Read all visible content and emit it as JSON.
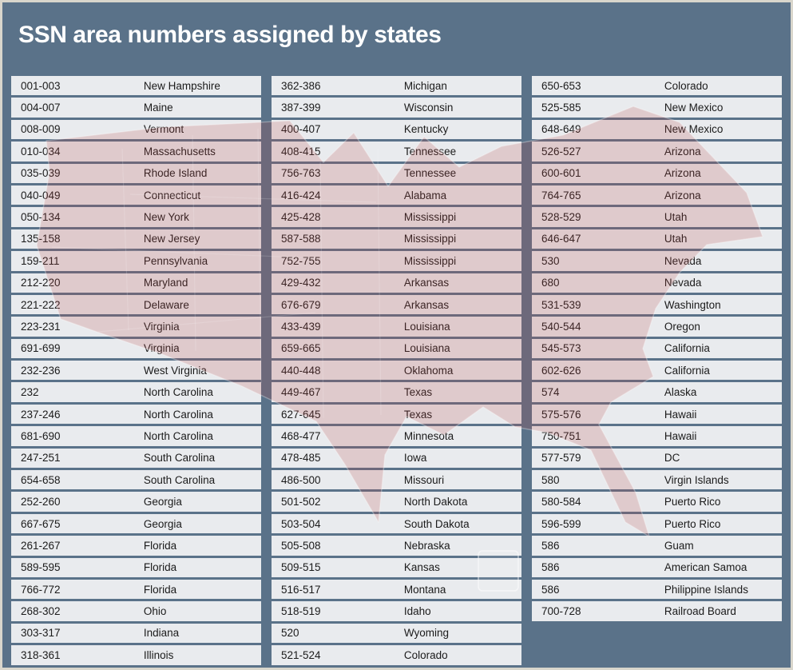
{
  "title": "SSN area numbers assigned by states",
  "colors": {
    "background": "#5a7289",
    "frame": "#d9d6cc",
    "row": "#e9ebee",
    "text": "#1b1b1b",
    "title": "#ffffff",
    "map": "#b84444"
  },
  "icons": {
    "us_map": "us-map-silhouette-background"
  },
  "columns": [
    {
      "rows": [
        {
          "range": "001-003",
          "state": "New Hampshire"
        },
        {
          "range": "004-007",
          "state": "Maine"
        },
        {
          "range": "008-009",
          "state": "Vermont"
        },
        {
          "range": "010-034",
          "state": "Massachusetts"
        },
        {
          "range": "035-039",
          "state": "Rhode Island"
        },
        {
          "range": "040-049",
          "state": "Connecticut"
        },
        {
          "range": "050-134",
          "state": "New York"
        },
        {
          "range": "135-158",
          "state": "New Jersey"
        },
        {
          "range": "159-211",
          "state": "Pennsylvania"
        },
        {
          "range": "212-220",
          "state": "Maryland"
        },
        {
          "range": "221-222",
          "state": "Delaware"
        },
        {
          "range": "223-231",
          "state": "Virginia"
        },
        {
          "range": "691-699",
          "state": "Virginia"
        },
        {
          "range": "232-236",
          "state": "West Virginia"
        },
        {
          "range": "232",
          "state": "North Carolina"
        },
        {
          "range": "237-246",
          "state": "North Carolina"
        },
        {
          "range": "681-690",
          "state": "North Carolina"
        },
        {
          "range": "247-251",
          "state": "South Carolina"
        },
        {
          "range": "654-658",
          "state": "South Carolina"
        },
        {
          "range": "252-260",
          "state": "Georgia"
        },
        {
          "range": "667-675",
          "state": "Georgia"
        },
        {
          "range": "261-267",
          "state": "Florida"
        },
        {
          "range": "589-595",
          "state": "Florida"
        },
        {
          "range": "766-772",
          "state": "Florida"
        },
        {
          "range": "268-302",
          "state": "Ohio"
        },
        {
          "range": "303-317",
          "state": "Indiana"
        },
        {
          "range": "318-361",
          "state": "Illinois"
        }
      ]
    },
    {
      "rows": [
        {
          "range": "362-386",
          "state": "Michigan"
        },
        {
          "range": "387-399",
          "state": "Wisconsin"
        },
        {
          "range": "400-407",
          "state": "Kentucky"
        },
        {
          "range": "408-415",
          "state": "Tennessee"
        },
        {
          "range": "756-763",
          "state": "Tennessee"
        },
        {
          "range": "416-424",
          "state": "Alabama"
        },
        {
          "range": "425-428",
          "state": "Mississippi"
        },
        {
          "range": "587-588",
          "state": "Mississippi"
        },
        {
          "range": "752-755",
          "state": "Mississippi"
        },
        {
          "range": "429-432",
          "state": "Arkansas"
        },
        {
          "range": "676-679",
          "state": "Arkansas"
        },
        {
          "range": "433-439",
          "state": "Louisiana"
        },
        {
          "range": "659-665",
          "state": "Louisiana"
        },
        {
          "range": "440-448",
          "state": "Oklahoma"
        },
        {
          "range": "449-467",
          "state": "Texas"
        },
        {
          "range": "627-645",
          "state": "Texas"
        },
        {
          "range": "468-477",
          "state": "Minnesota"
        },
        {
          "range": "478-485",
          "state": "Iowa"
        },
        {
          "range": "486-500",
          "state": "Missouri"
        },
        {
          "range": "501-502",
          "state": "North Dakota"
        },
        {
          "range": "503-504",
          "state": "South Dakota"
        },
        {
          "range": "505-508",
          "state": "Nebraska"
        },
        {
          "range": "509-515",
          "state": "Kansas"
        },
        {
          "range": "516-517",
          "state": "Montana"
        },
        {
          "range": "518-519",
          "state": "Idaho"
        },
        {
          "range": "520",
          "state": "Wyoming"
        },
        {
          "range": "521-524",
          "state": "Colorado"
        }
      ]
    },
    {
      "rows": [
        {
          "range": "650-653",
          "state": "Colorado"
        },
        {
          "range": "525-585",
          "state": "New Mexico"
        },
        {
          "range": "648-649",
          "state": "New Mexico"
        },
        {
          "range": "526-527",
          "state": "Arizona"
        },
        {
          "range": "600-601",
          "state": "Arizona"
        },
        {
          "range": "764-765",
          "state": "Arizona"
        },
        {
          "range": "528-529",
          "state": "Utah"
        },
        {
          "range": "646-647",
          "state": "Utah"
        },
        {
          "range": "530",
          "state": "Nevada"
        },
        {
          "range": "680",
          "state": "Nevada"
        },
        {
          "range": "531-539",
          "state": "Washington"
        },
        {
          "range": "540-544",
          "state": "Oregon"
        },
        {
          "range": "545-573",
          "state": "California"
        },
        {
          "range": "602-626",
          "state": "California"
        },
        {
          "range": "574",
          "state": "Alaska"
        },
        {
          "range": "575-576",
          "state": "Hawaii"
        },
        {
          "range": "750-751",
          "state": "Hawaii"
        },
        {
          "range": "577-579",
          "state": "DC"
        },
        {
          "range": "580",
          "state": "Virgin Islands"
        },
        {
          "range": "580-584",
          "state": "Puerto Rico"
        },
        {
          "range": "596-599",
          "state": "Puerto Rico"
        },
        {
          "range": "586",
          "state": "Guam"
        },
        {
          "range": "586",
          "state": "American Samoa"
        },
        {
          "range": "586",
          "state": "Philippine Islands"
        },
        {
          "range": "700-728",
          "state": "Railroad Board"
        }
      ]
    }
  ]
}
